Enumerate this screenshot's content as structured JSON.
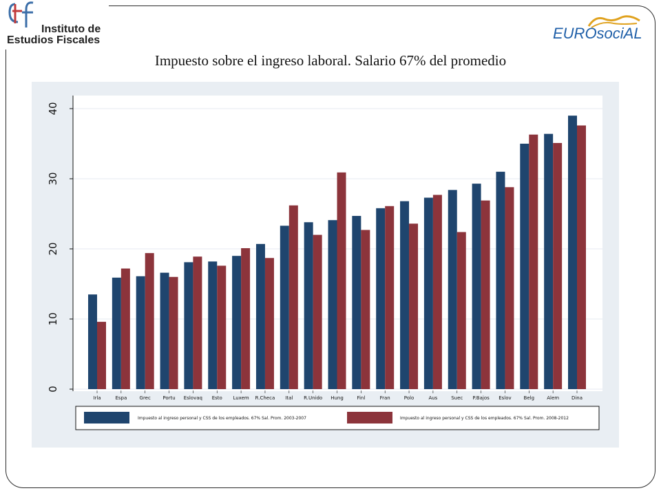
{
  "header": {
    "logo_left_line1": "Instituto de",
    "logo_left_line2": "Estudios Fiscales",
    "logo_right": "EUROsociAL"
  },
  "slide_title": "Impuesto sobre el ingreso laboral. Salario 67% del promedio",
  "colors": {
    "series1": "#1f456e",
    "series2": "#8c343b",
    "panel": "#e9eef3",
    "plot_bg": "#ffffff",
    "grid": "#e9eef3"
  },
  "chart_data": {
    "type": "bar",
    "title": "Impuesto sobre el ingreso laboral. Salario 67% del promedio",
    "xlabel": "",
    "ylabel": "",
    "ylim": [
      0,
      40
    ],
    "yticks": [
      0,
      10,
      20,
      30,
      40
    ],
    "grid": true,
    "legend_position": "bottom",
    "categories": [
      "Irla",
      "Espa",
      "Grec",
      "Portu",
      "Eslovaq",
      "Esto",
      "Luxem",
      "R.Checa",
      "Ital",
      "R.Unido",
      "Hung",
      "Finl",
      "Fran",
      "Polo",
      "Aus",
      "Suec",
      "P.Bajos",
      "Eslov",
      "Belg",
      "Alem",
      "Dina"
    ],
    "series": [
      {
        "name": "Impuesto al ingreso personal y CSS de los empleados. 67% Sal. Prom. 2003-2007",
        "values": [
          13.5,
          15.9,
          16.1,
          16.6,
          18.1,
          18.2,
          19.0,
          20.7,
          23.3,
          23.8,
          24.1,
          24.7,
          25.8,
          26.8,
          27.3,
          28.4,
          29.3,
          31.0,
          35.0,
          36.4,
          39.0
        ]
      },
      {
        "name": "Impuesto al ingreso personal y CSS de los empleados. 67% Sal. Prom. 2008-2012",
        "values": [
          9.6,
          17.2,
          19.4,
          16.0,
          18.9,
          17.6,
          20.1,
          18.7,
          26.2,
          22.0,
          30.9,
          22.7,
          26.1,
          23.6,
          27.7,
          22.4,
          26.9,
          28.8,
          36.3,
          35.1,
          37.6
        ]
      }
    ]
  }
}
